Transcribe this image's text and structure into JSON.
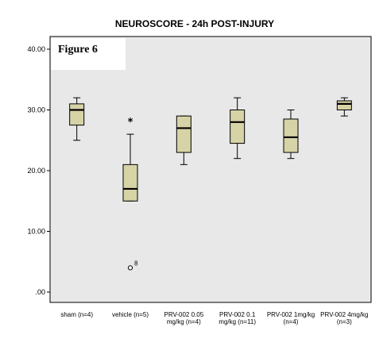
{
  "figure_label": "Figure 6",
  "chart_data": {
    "type": "box",
    "title": "NEUROSCORE - 24h POST-INJURY",
    "ylim": [
      0,
      40
    ],
    "yticks": [
      0,
      10,
      20,
      30,
      40
    ],
    "ytick_labels": [
      ".00",
      "10.00",
      "20.00",
      "30.00",
      "40.00"
    ],
    "grid": false,
    "box_color": "#d6d3a7",
    "plot_bg": "#e8e8e8",
    "categories": [
      {
        "label": [
          "sham (n=4)"
        ],
        "min": 25,
        "q1": 27.5,
        "median": 30,
        "q3": 31,
        "max": 32,
        "outliers": [],
        "extremes": []
      },
      {
        "label": [
          "vehicle (n=5)"
        ],
        "min": 15,
        "q1": 15,
        "median": 17,
        "q3": 21,
        "max": 26,
        "outliers": [
          {
            "value": 4,
            "label": "8"
          }
        ],
        "extremes": [
          28
        ]
      },
      {
        "label": [
          "PRV-002 0.05",
          "mg/kg (n=4)"
        ],
        "min": 21,
        "q1": 23,
        "median": 27,
        "q3": 29,
        "max": 29,
        "outliers": [],
        "extremes": []
      },
      {
        "label": [
          "PRV-002 0.1",
          "mg/kg (n=11)"
        ],
        "min": 22,
        "q1": 24.5,
        "median": 28,
        "q3": 30,
        "max": 32,
        "outliers": [],
        "extremes": []
      },
      {
        "label": [
          "PRV-002 1mg/kg",
          "(n=4)"
        ],
        "min": 22,
        "q1": 23,
        "median": 25.5,
        "q3": 28.5,
        "max": 30,
        "outliers": [],
        "extremes": []
      },
      {
        "label": [
          "PRV-002 4mg/kg",
          "(n=3)"
        ],
        "min": 29,
        "q1": 30,
        "median": 31,
        "q3": 31.5,
        "max": 32,
        "outliers": [],
        "extremes": []
      }
    ]
  }
}
